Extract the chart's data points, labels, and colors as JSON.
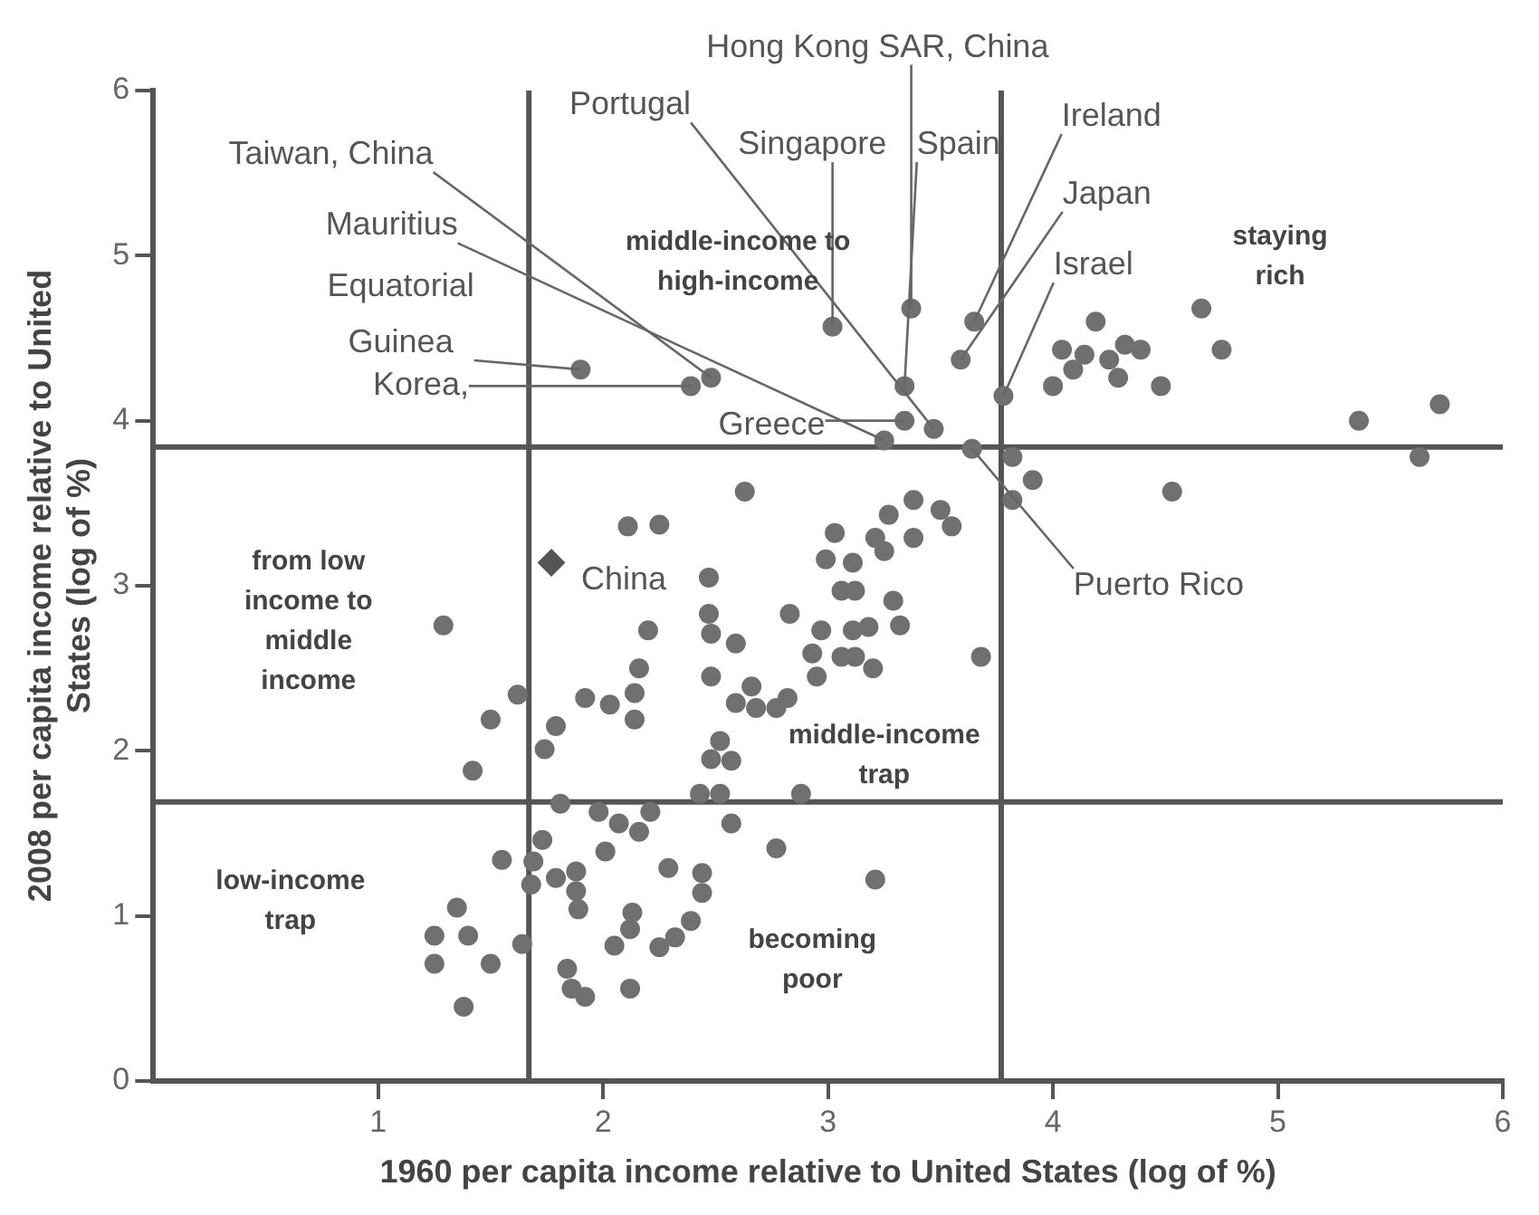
{
  "chart_data": {
    "type": "scatter",
    "xlabel": "1960 per capita income relative to United States (log of %)",
    "ylabel": "2008 per capita income relative to United States (log of %)",
    "xlim": [
      0,
      6
    ],
    "ylim": [
      0,
      6
    ],
    "xticks": [
      1,
      2,
      3,
      4,
      5,
      6
    ],
    "yticks": [
      0,
      1,
      2,
      3,
      4,
      5,
      6
    ],
    "grid": false,
    "legend": false,
    "series": [
      {
        "type": "scatter",
        "color": "#707070",
        "marker": "circle",
        "x": [
          1.9,
          2.39,
          2.48,
          3.02,
          3.37,
          3.65,
          3.59,
          3.34,
          3.78,
          3.34,
          3.47,
          3.25,
          3.64,
          4.19,
          4.04,
          4.14,
          4.09,
          4.25,
          4.32,
          4.39,
          4.29,
          4.0,
          4.48,
          4.66,
          4.75,
          5.36,
          5.72,
          5.63,
          3.82,
          3.91,
          3.82,
          4.53,
          3.38,
          3.5,
          3.55,
          3.27,
          3.38,
          3.21,
          3.25,
          3.03,
          3.11,
          2.63,
          2.11,
          2.25,
          2.99,
          2.47,
          3.12,
          3.29,
          3.32,
          3.18,
          3.11,
          3.12,
          3.2,
          3.68,
          3.21,
          3.06,
          1.29,
          2.47,
          2.48,
          2.59,
          2.2,
          2.83,
          2.97,
          2.93,
          3.06,
          2.95,
          2.16,
          2.14,
          2.14,
          1.92,
          2.03,
          2.48,
          2.66,
          2.59,
          2.68,
          2.77,
          2.82,
          1.62,
          1.5,
          1.79,
          1.74,
          1.42,
          2.52,
          2.48,
          2.57,
          1.81,
          1.98,
          2.07,
          2.21,
          2.16,
          2.43,
          2.52,
          2.57,
          2.88,
          2.77,
          1.73,
          1.69,
          1.55,
          1.68,
          2.01,
          1.79,
          1.88,
          1.88,
          1.89,
          2.29,
          2.44,
          2.44,
          2.13,
          2.12,
          2.39,
          2.32,
          2.25,
          2.05,
          1.84,
          1.86,
          1.92,
          2.12,
          1.35,
          1.25,
          1.4,
          1.25,
          1.5,
          1.64,
          1.38
        ],
        "values": [
          4.31,
          4.21,
          4.26,
          4.57,
          4.68,
          4.6,
          4.37,
          4.21,
          4.15,
          4.0,
          3.95,
          3.88,
          3.83,
          4.6,
          4.43,
          4.4,
          4.31,
          4.37,
          4.46,
          4.43,
          4.26,
          4.21,
          4.21,
          4.68,
          4.43,
          4.0,
          4.1,
          3.78,
          3.78,
          3.64,
          3.52,
          3.57,
          3.52,
          3.46,
          3.36,
          3.43,
          3.29,
          3.29,
          3.21,
          3.32,
          3.14,
          3.57,
          3.36,
          3.37,
          3.16,
          3.05,
          2.97,
          2.91,
          2.76,
          2.75,
          2.73,
          2.57,
          2.5,
          2.57,
          1.22,
          2.97,
          2.76,
          2.83,
          2.71,
          2.65,
          2.73,
          2.83,
          2.73,
          2.59,
          2.57,
          2.45,
          2.5,
          2.35,
          2.19,
          2.32,
          2.28,
          2.45,
          2.39,
          2.29,
          2.26,
          2.26,
          2.32,
          2.34,
          2.19,
          2.15,
          2.01,
          1.88,
          2.06,
          1.95,
          1.94,
          1.68,
          1.63,
          1.56,
          1.63,
          1.51,
          1.74,
          1.74,
          1.56,
          1.74,
          1.41,
          1.46,
          1.33,
          1.34,
          1.19,
          1.39,
          1.23,
          1.27,
          1.15,
          1.04,
          1.29,
          1.26,
          1.14,
          1.02,
          0.92,
          0.97,
          0.87,
          0.81,
          0.82,
          0.68,
          0.56,
          0.51,
          0.56,
          1.05,
          0.88,
          0.88,
          0.71,
          0.71,
          0.83,
          0.45
        ]
      },
      {
        "type": "scatter",
        "color": "#555555",
        "marker": "diamond",
        "x": [
          1.77
        ],
        "values": [
          3.14
        ]
      }
    ],
    "ref_lines": [
      {
        "axis": "x",
        "value": 1.67,
        "color": "#555555"
      },
      {
        "axis": "x",
        "value": 3.77,
        "color": "#555555"
      },
      {
        "axis": "y",
        "value": 3.84,
        "color": "#555555"
      },
      {
        "axis": "y",
        "value": 1.69,
        "color": "#555555"
      }
    ],
    "annotations": [
      {
        "text": "Hong Kong SAR, China",
        "x": 3.37,
        "y": 4.68
      },
      {
        "text": "Portugal",
        "x": 3.47,
        "y": 3.95
      },
      {
        "text": "Singapore",
        "x": 3.02,
        "y": 4.57
      },
      {
        "text": "Spain",
        "x": 3.34,
        "y": 4.21
      },
      {
        "text": "Ireland",
        "x": 3.65,
        "y": 4.6
      },
      {
        "text": "Japan",
        "x": 3.59,
        "y": 4.37
      },
      {
        "text": "Israel",
        "x": 3.78,
        "y": 4.15
      },
      {
        "text": "Taiwan, China",
        "x": 2.48,
        "y": 4.26
      },
      {
        "text": "Mauritius",
        "x": 3.25,
        "y": 3.88
      },
      {
        "text": "Equatorial Guinea",
        "x": 1.9,
        "y": 4.31
      },
      {
        "text": "Korea,",
        "x": 2.39,
        "y": 4.21
      },
      {
        "text": "Greece",
        "x": 3.34,
        "y": 4.0
      },
      {
        "text": "Puerto Rico",
        "x": 3.64,
        "y": 3.83
      },
      {
        "text": "China",
        "x": 1.77,
        "y": 3.14
      },
      "middle-income to high-income",
      "staying rich",
      "from low income to middle income",
      "middle-income trap",
      "low-income trap",
      "becoming poor"
    ]
  }
}
